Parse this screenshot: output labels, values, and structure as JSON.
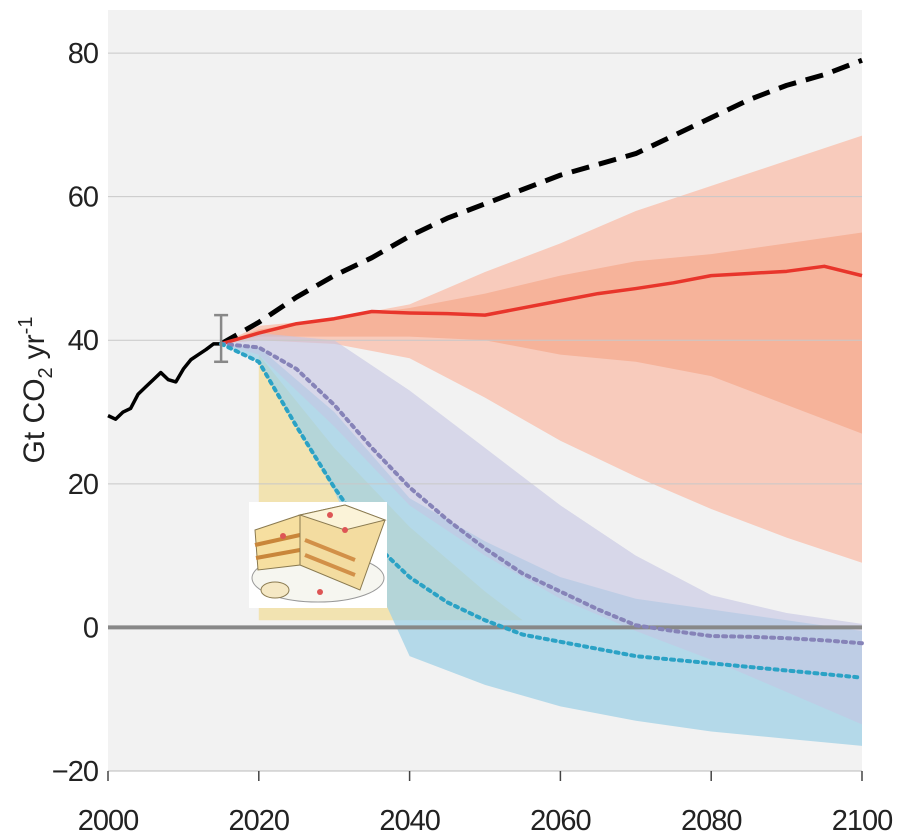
{
  "chart_data": {
    "type": "line",
    "ylabel": {
      "text": "Gt CO",
      "sub": "2",
      "unit": "yr",
      "sup": "-1"
    },
    "xlim": [
      2000,
      2100
    ],
    "ylim": [
      -20,
      86
    ],
    "xticks": [
      2000,
      2020,
      2040,
      2060,
      2080,
      2100
    ],
    "yticks": [
      {
        "value": -20,
        "label": "−20"
      },
      0,
      20,
      40,
      60,
      80
    ],
    "grid": true,
    "bands": [
      {
        "color": "#f8cbbc",
        "x": [
          2015,
          2020,
          2030,
          2040,
          2050,
          2060,
          2070,
          2080,
          2090,
          2100
        ],
        "upper": [
          39.5,
          42,
          43,
          45,
          49.5,
          53.5,
          58,
          61.5,
          65,
          68.5
        ],
        "lower": [
          39.5,
          40,
          39.5,
          37.5,
          32,
          26,
          21,
          16.5,
          12.5,
          9
        ]
      },
      {
        "color": "#f6b39a",
        "x": [
          2015,
          2020,
          2030,
          2040,
          2050,
          2060,
          2070,
          2080,
          2090,
          2100
        ],
        "upper": [
          39.5,
          41.5,
          43,
          44.5,
          46.5,
          49,
          51,
          52,
          53.5,
          55
        ],
        "lower": [
          39.5,
          40.5,
          40.5,
          40.5,
          40,
          38,
          37,
          35,
          31,
          27
        ]
      },
      {
        "color": "#f2e0a6",
        "x": [
          2020,
          2030,
          2040,
          2050,
          2055
        ],
        "upper": [
          38,
          25,
          14,
          5,
          1
        ],
        "lower": [
          1,
          1,
          1,
          1,
          1
        ]
      },
      {
        "color": "#9fd0e6",
        "x": [
          2015,
          2020,
          2030,
          2040,
          2050,
          2060,
          2070,
          2080,
          2090,
          2100
        ],
        "upper": [
          39.5,
          39,
          30,
          18,
          12,
          7,
          4,
          2.5,
          1,
          -0.5
        ],
        "lower": [
          39.5,
          37,
          19,
          -4,
          -8,
          -11,
          -13,
          -14.5,
          -15.5,
          -16.5
        ]
      },
      {
        "color": "#c4c4e2",
        "x": [
          2015,
          2020,
          2030,
          2040,
          2050,
          2060,
          2070,
          2080,
          2090,
          2100
        ],
        "upper": [
          39.5,
          41,
          40,
          33,
          25,
          17,
          10,
          4.5,
          2,
          0.5
        ],
        "lower": [
          39.5,
          38,
          28,
          17,
          10,
          4,
          -0.5,
          -4.5,
          -9,
          -13.5
        ]
      }
    ],
    "series": [
      {
        "color": "#000000",
        "style": "solid",
        "x": [
          2000,
          2001,
          2002,
          2003,
          2004,
          2005,
          2006,
          2007,
          2008,
          2009,
          2010,
          2011,
          2012,
          2013,
          2014,
          2015
        ],
        "values": [
          29.5,
          29,
          30,
          30.5,
          32.5,
          33.5,
          34.5,
          35.5,
          34.5,
          34.2,
          36,
          37.3,
          38,
          38.7,
          39.5,
          39.5
        ]
      },
      {
        "color": "#000000",
        "style": "dashed",
        "x": [
          2015,
          2020,
          2025,
          2030,
          2035,
          2040,
          2045,
          2050,
          2055,
          2060,
          2065,
          2070,
          2075,
          2080,
          2085,
          2090,
          2095,
          2100
        ],
        "values": [
          39.5,
          42.5,
          46,
          49,
          51.5,
          54.5,
          57,
          59,
          61,
          63,
          64.5,
          66,
          68.5,
          71,
          73.5,
          75.5,
          77,
          79
        ]
      },
      {
        "color": "#e8352b",
        "style": "solid",
        "x": [
          2015,
          2020,
          2025,
          2030,
          2035,
          2040,
          2045,
          2050,
          2055,
          2060,
          2065,
          2070,
          2075,
          2080,
          2085,
          2090,
          2095,
          2100
        ],
        "values": [
          39.5,
          41,
          42.3,
          43,
          44,
          43.8,
          43.7,
          43.5,
          44.5,
          45.5,
          46.5,
          47.2,
          48,
          49,
          49.3,
          49.6,
          50.3,
          49
        ]
      },
      {
        "color": "#8683b8",
        "style": "dotted",
        "x": [
          2015,
          2020,
          2025,
          2030,
          2035,
          2040,
          2045,
          2050,
          2055,
          2060,
          2065,
          2070,
          2075,
          2080,
          2085,
          2090,
          2095,
          2100
        ],
        "values": [
          39.5,
          39,
          36,
          31,
          25,
          19.5,
          15,
          11,
          7.5,
          5,
          2.5,
          0.3,
          -0.5,
          -1.2,
          -1.3,
          -1.5,
          -1.8,
          -2.2
        ]
      },
      {
        "color": "#2ba2c5",
        "style": "dotted",
        "x": [
          2015,
          2020,
          2025,
          2030,
          2035,
          2040,
          2045,
          2050,
          2055,
          2060,
          2065,
          2070,
          2075,
          2080,
          2085,
          2090,
          2095,
          2100
        ],
        "values": [
          39.5,
          37,
          28,
          19.5,
          12,
          7,
          3.5,
          1,
          -1,
          -2,
          -3,
          -4,
          -4.5,
          -5,
          -5.5,
          -6,
          -6.5,
          -7
        ]
      }
    ],
    "error_bar": {
      "x": 2015,
      "low": 37,
      "high": 43.5,
      "color": "#888888"
    }
  }
}
